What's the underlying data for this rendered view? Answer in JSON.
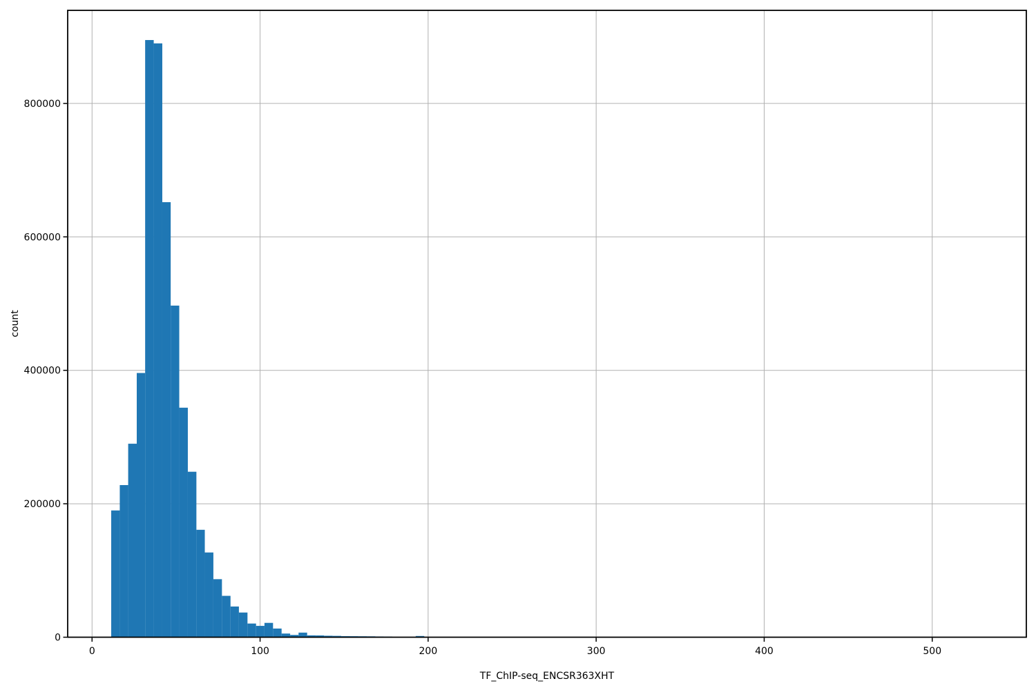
{
  "figure": {
    "background": "#ffffff"
  },
  "chart_data": {
    "type": "bar",
    "subtype": "histogram",
    "title": "",
    "xlabel": "TF_ChIP-seq_ENCSR363XHT",
    "ylabel": "count",
    "bar_color": "#1f77b4",
    "grid": true,
    "grid_color": "#b0b0b0",
    "spine_color": "#000000",
    "xlim": [
      -14.5,
      556
    ],
    "ylim": [
      0,
      939500
    ],
    "x_ticks": [
      0,
      100,
      200,
      300,
      400,
      500
    ],
    "y_ticks": [
      0,
      200000,
      400000,
      600000,
      800000
    ],
    "x_tick_labels": [
      "0",
      "100",
      "200",
      "300",
      "400",
      "500"
    ],
    "y_tick_labels": [
      "0",
      "200000",
      "400000",
      "600000",
      "800000"
    ],
    "legend": null,
    "bars": [
      {
        "x0": 11.4,
        "x1": 16.5,
        "count": 190000
      },
      {
        "x0": 16.5,
        "x1": 21.5,
        "count": 228000
      },
      {
        "x0": 21.5,
        "x1": 26.6,
        "count": 290000
      },
      {
        "x0": 26.6,
        "x1": 31.6,
        "count": 396000
      },
      {
        "x0": 31.6,
        "x1": 36.7,
        "count": 895000
      },
      {
        "x0": 36.7,
        "x1": 41.8,
        "count": 890000
      },
      {
        "x0": 41.8,
        "x1": 46.8,
        "count": 652000
      },
      {
        "x0": 46.8,
        "x1": 51.9,
        "count": 497000
      },
      {
        "x0": 51.9,
        "x1": 57.0,
        "count": 344000
      },
      {
        "x0": 57.0,
        "x1": 62.1,
        "count": 248000
      },
      {
        "x0": 62.1,
        "x1": 67.1,
        "count": 161000
      },
      {
        "x0": 67.1,
        "x1": 72.2,
        "count": 127000
      },
      {
        "x0": 72.2,
        "x1": 77.3,
        "count": 87000
      },
      {
        "x0": 77.3,
        "x1": 82.4,
        "count": 62000
      },
      {
        "x0": 82.4,
        "x1": 87.4,
        "count": 46000
      },
      {
        "x0": 87.4,
        "x1": 92.5,
        "count": 37000
      },
      {
        "x0": 92.5,
        "x1": 97.6,
        "count": 20500
      },
      {
        "x0": 97.6,
        "x1": 102.6,
        "count": 17000
      },
      {
        "x0": 102.6,
        "x1": 107.7,
        "count": 21500
      },
      {
        "x0": 107.7,
        "x1": 112.8,
        "count": 13000
      },
      {
        "x0": 112.8,
        "x1": 117.9,
        "count": 5500
      },
      {
        "x0": 117.9,
        "x1": 122.9,
        "count": 3400
      },
      {
        "x0": 122.9,
        "x1": 128.0,
        "count": 6900
      },
      {
        "x0": 128.0,
        "x1": 133.1,
        "count": 2800
      },
      {
        "x0": 133.1,
        "x1": 138.1,
        "count": 2700
      },
      {
        "x0": 138.1,
        "x1": 143.2,
        "count": 2200
      },
      {
        "x0": 143.2,
        "x1": 148.3,
        "count": 2000
      },
      {
        "x0": 148.3,
        "x1": 153.4,
        "count": 1600
      },
      {
        "x0": 153.4,
        "x1": 158.4,
        "count": 1500
      },
      {
        "x0": 158.4,
        "x1": 163.5,
        "count": 1400
      },
      {
        "x0": 163.5,
        "x1": 168.6,
        "count": 1300
      },
      {
        "x0": 168.6,
        "x1": 173.6,
        "count": 1100
      },
      {
        "x0": 173.6,
        "x1": 178.7,
        "count": 1000
      },
      {
        "x0": 178.7,
        "x1": 183.8,
        "count": 500
      },
      {
        "x0": 183.8,
        "x1": 192.6,
        "count": 0
      },
      {
        "x0": 192.6,
        "x1": 197.7,
        "count": 1800
      }
    ]
  }
}
